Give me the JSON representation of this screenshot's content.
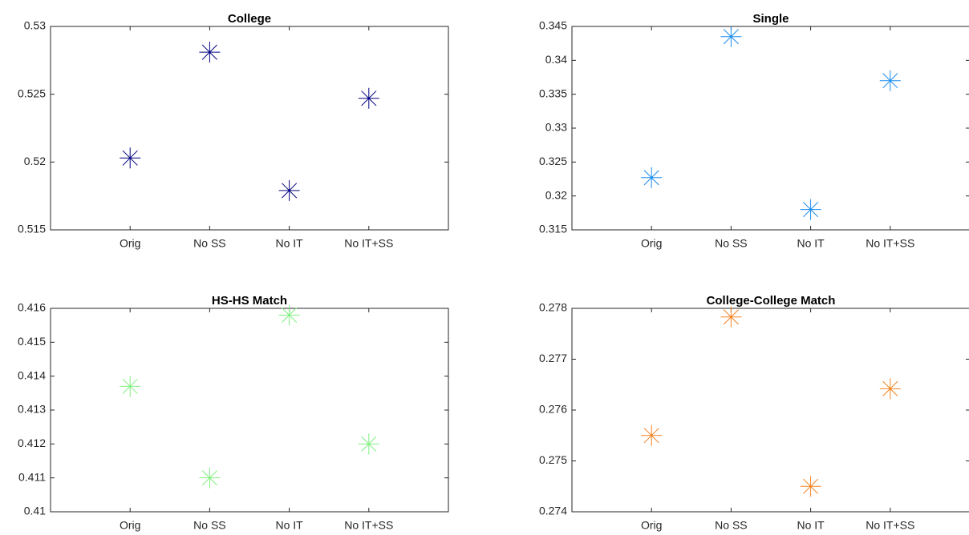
{
  "chart_data": [
    {
      "type": "scatter",
      "title": "College",
      "categories": [
        "Orig",
        "No SS",
        "No IT",
        "No IT+SS"
      ],
      "values": [
        0.5203,
        0.5281,
        0.5179,
        0.5247
      ],
      "color": "#000080",
      "ylim": [
        0.515,
        0.53
      ],
      "yticks": [
        0.515,
        0.52,
        0.525,
        0.53
      ]
    },
    {
      "type": "scatter",
      "title": "Single",
      "categories": [
        "Orig",
        "No SS",
        "No IT",
        "No IT+SS"
      ],
      "values": [
        0.3227,
        0.3435,
        0.318,
        0.337
      ],
      "color": "#1a8cf0",
      "ylim": [
        0.315,
        0.345
      ],
      "yticks": [
        0.315,
        0.32,
        0.325,
        0.33,
        0.335,
        0.34,
        0.345
      ]
    },
    {
      "type": "scatter",
      "title": "HS-HS Match",
      "categories": [
        "Orig",
        "No SS",
        "No IT",
        "No IT+SS"
      ],
      "values": [
        0.4137,
        0.411,
        0.4158,
        0.412
      ],
      "color": "#80f080",
      "ylim": [
        0.41,
        0.416
      ],
      "yticks": [
        0.41,
        0.411,
        0.412,
        0.413,
        0.414,
        0.415,
        0.416
      ]
    },
    {
      "type": "scatter",
      "title": "College-College Match",
      "categories": [
        "Orig",
        "No SS",
        "No IT",
        "No IT+SS"
      ],
      "values": [
        0.2755,
        0.27783,
        0.2745,
        0.27642
      ],
      "color": "#f58220",
      "ylim": [
        0.274,
        0.278
      ],
      "yticks": [
        0.274,
        0.275,
        0.276,
        0.277,
        0.278
      ]
    }
  ]
}
